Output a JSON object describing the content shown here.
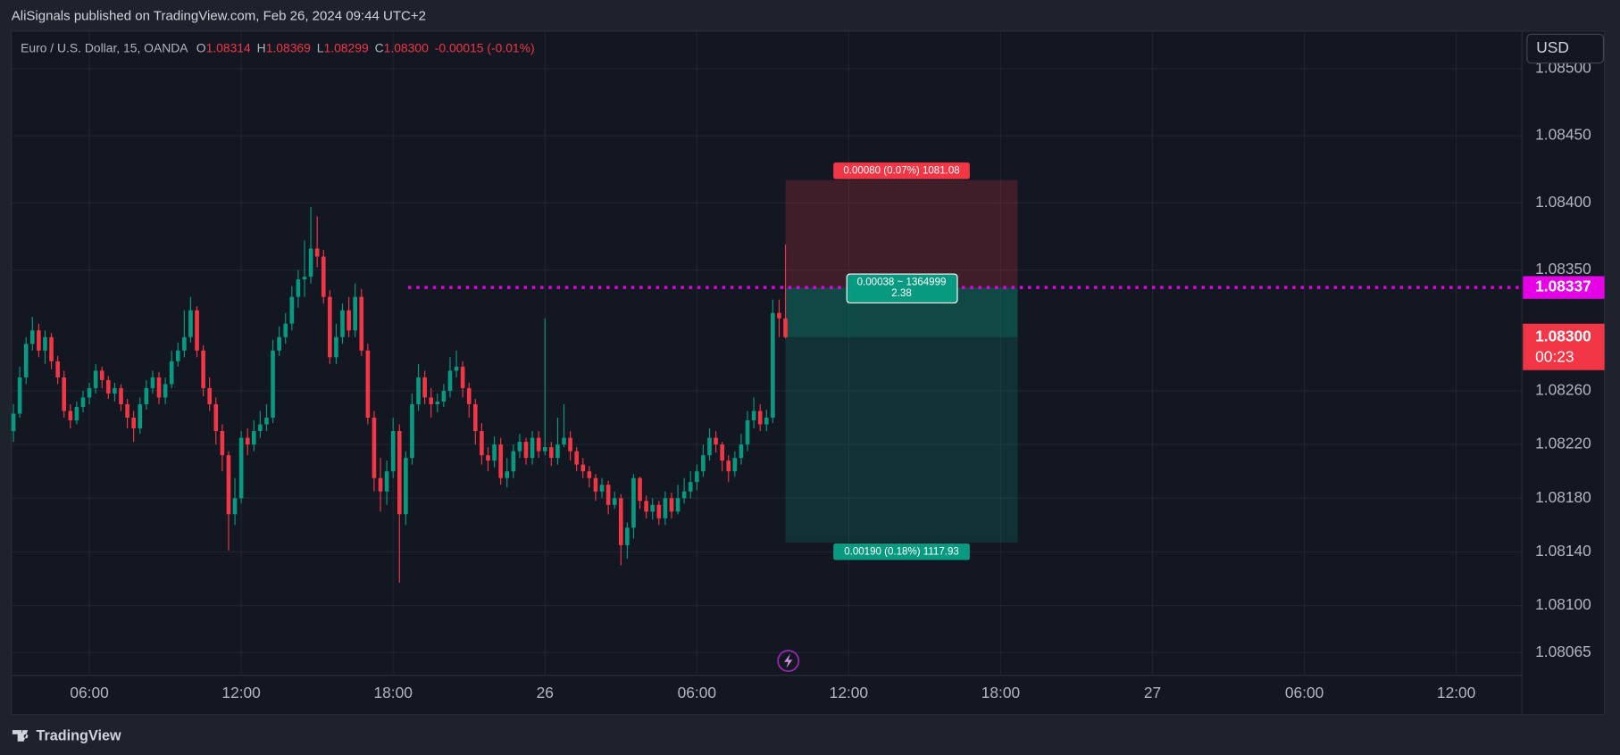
{
  "header": {
    "text": "AliSignals published on TradingView.com, Feb 26, 2024 09:44 UTC+2"
  },
  "legend": {
    "symbol": "Euro / U.S. Dollar, 15, OANDA",
    "o": "O",
    "open": "1.08314",
    "h": "H",
    "high": "1.08369",
    "l": "L",
    "low": "1.08299",
    "c": "C",
    "close": "1.08300",
    "change": "-0.00015 (-0.01%)"
  },
  "currency": "USD",
  "brand": "TradingView",
  "chart_data": {
    "type": "candlestick",
    "up_color": "#089981",
    "down_color": "#f23645",
    "ylim": [
      1.08048,
      1.08528
    ],
    "yticks": [
      {
        "value": 1.085,
        "label": "1.08500"
      },
      {
        "value": 1.0845,
        "label": "1.08450"
      },
      {
        "value": 1.084,
        "label": "1.08400"
      },
      {
        "value": 1.0835,
        "label": "1.08350"
      },
      {
        "value": 1.0826,
        "label": "1.08260"
      },
      {
        "value": 1.0822,
        "label": "1.08220"
      },
      {
        "value": 1.0818,
        "label": "1.08180"
      },
      {
        "value": 1.0814,
        "label": "1.08140"
      },
      {
        "value": 1.081,
        "label": "1.08100"
      },
      1.08065
    ],
    "xticks": [
      "06:00",
      "12:00",
      "18:00",
      "26",
      "06:00",
      "12:00",
      "18:00",
      "27",
      "06:00",
      "12:00"
    ],
    "grid": true,
    "alert": {
      "value": 1.08337,
      "color": "#e600e6"
    },
    "last_price": {
      "value": 1.083,
      "label": "1.08300",
      "countdown": "00:23"
    },
    "position": {
      "entry": 1.08337,
      "stop": 1.08417,
      "target": 1.08147,
      "stop_label": "0.00080 (0.07%) 1081.08",
      "entry_label": "0.00038 ~ 1364999",
      "ratio": "2.38",
      "target_label": "0.00190 (0.18%) 1117.93"
    },
    "ohlc": [
      [
        1.0823,
        1.0825,
        1.08222,
        1.08243
      ],
      [
        1.08243,
        1.08278,
        1.0824,
        1.0827
      ],
      [
        1.0827,
        1.083,
        1.08265,
        1.08295
      ],
      [
        1.08295,
        1.08315,
        1.0829,
        1.08305
      ],
      [
        1.08305,
        1.0831,
        1.08285,
        1.0829
      ],
      [
        1.0829,
        1.08305,
        1.0828,
        1.083
      ],
      [
        1.083,
        1.08303,
        1.08276,
        1.08282
      ],
      [
        1.08282,
        1.08286,
        1.08265,
        1.0827
      ],
      [
        1.0827,
        1.08275,
        1.0824,
        1.08245
      ],
      [
        1.08245,
        1.0825,
        1.08232,
        1.08238
      ],
      [
        1.08238,
        1.08252,
        1.08235,
        1.08248
      ],
      [
        1.08248,
        1.0826,
        1.08244,
        1.08255
      ],
      [
        1.08255,
        1.08266,
        1.0825,
        1.08262
      ],
      [
        1.08262,
        1.0828,
        1.08258,
        1.08275
      ],
      [
        1.08275,
        1.08278,
        1.08262,
        1.08268
      ],
      [
        1.08268,
        1.08271,
        1.08254,
        1.08258
      ],
      [
        1.08258,
        1.08266,
        1.08252,
        1.08262
      ],
      [
        1.08262,
        1.08265,
        1.08245,
        1.0825
      ],
      [
        1.0825,
        1.08254,
        1.08232,
        1.0824
      ],
      [
        1.0824,
        1.08245,
        1.08222,
        1.08232
      ],
      [
        1.08232,
        1.08255,
        1.08228,
        1.0825
      ],
      [
        1.0825,
        1.08268,
        1.08246,
        1.08262
      ],
      [
        1.08262,
        1.08275,
        1.08258,
        1.0827
      ],
      [
        1.0827,
        1.08274,
        1.0825,
        1.08255
      ],
      [
        1.08255,
        1.0827,
        1.0825,
        1.08265
      ],
      [
        1.08265,
        1.0829,
        1.08262,
        1.08282
      ],
      [
        1.08282,
        1.08296,
        1.08278,
        1.0829
      ],
      [
        1.0829,
        1.0832,
        1.08285,
        1.083
      ],
      [
        1.083,
        1.0833,
        1.08296,
        1.0832
      ],
      [
        1.0832,
        1.08323,
        1.08285,
        1.0829
      ],
      [
        1.0829,
        1.08294,
        1.08256,
        1.08262
      ],
      [
        1.08262,
        1.0827,
        1.08245,
        1.0825
      ],
      [
        1.0825,
        1.08255,
        1.0822,
        1.0823
      ],
      [
        1.0823,
        1.08235,
        1.082,
        1.08212
      ],
      [
        1.08212,
        1.08215,
        1.08141,
        1.08168
      ],
      [
        1.08168,
        1.08195,
        1.0816,
        1.0818
      ],
      [
        1.0818,
        1.0823,
        1.08176,
        1.08225
      ],
      [
        1.08225,
        1.08232,
        1.08212,
        1.0822
      ],
      [
        1.0822,
        1.08238,
        1.08215,
        1.0823
      ],
      [
        1.0823,
        1.08245,
        1.08225,
        1.08235
      ],
      [
        1.08235,
        1.0825,
        1.0823,
        1.0824
      ],
      [
        1.0824,
        1.08298,
        1.08236,
        1.0829
      ],
      [
        1.0829,
        1.08308,
        1.08286,
        1.083
      ],
      [
        1.083,
        1.08318,
        1.08295,
        1.0831
      ],
      [
        1.0831,
        1.08338,
        1.08305,
        1.0833
      ],
      [
        1.0833,
        1.0835,
        1.08322,
        1.08343
      ],
      [
        1.08343,
        1.08372,
        1.0833,
        1.08345
      ],
      [
        1.08345,
        1.08397,
        1.0834,
        1.08366
      ],
      [
        1.08366,
        1.0839,
        1.08352,
        1.0836
      ],
      [
        1.0836,
        1.08365,
        1.08325,
        1.0833
      ],
      [
        1.0833,
        1.08335,
        1.0828,
        1.08285
      ],
      [
        1.08285,
        1.0831,
        1.0828,
        1.083
      ],
      [
        1.083,
        1.08325,
        1.08295,
        1.0832
      ],
      [
        1.0832,
        1.0833,
        1.083,
        1.08305
      ],
      [
        1.08305,
        1.0834,
        1.083,
        1.0833
      ],
      [
        1.0833,
        1.08336,
        1.08286,
        1.0829
      ],
      [
        1.0829,
        1.08295,
        1.08235,
        1.0824
      ],
      [
        1.0824,
        1.08245,
        1.08185,
        1.08195
      ],
      [
        1.08195,
        1.0821,
        1.0817,
        1.08185
      ],
      [
        1.08185,
        1.08208,
        1.08175,
        1.082
      ],
      [
        1.082,
        1.0824,
        1.08195,
        1.0823
      ],
      [
        1.0823,
        1.08235,
        1.08117,
        1.08168
      ],
      [
        1.08168,
        1.08215,
        1.0816,
        1.0821
      ],
      [
        1.0821,
        1.08258,
        1.08205,
        1.0825
      ],
      [
        1.0825,
        1.0828,
        1.08245,
        1.0827
      ],
      [
        1.0827,
        1.08275,
        1.0825,
        1.08255
      ],
      [
        1.08255,
        1.08262,
        1.0824,
        1.0825
      ],
      [
        1.0825,
        1.08258,
        1.08244,
        1.08252
      ],
      [
        1.08252,
        1.08265,
        1.08248,
        1.0826
      ],
      [
        1.0826,
        1.08285,
        1.08255,
        1.08275
      ],
      [
        1.08275,
        1.0829,
        1.0827,
        1.08278
      ],
      [
        1.08278,
        1.08282,
        1.08255,
        1.08262
      ],
      [
        1.08262,
        1.08266,
        1.0824,
        1.0825
      ],
      [
        1.0825,
        1.08254,
        1.0822,
        1.0823
      ],
      [
        1.0823,
        1.08236,
        1.08205,
        1.08212
      ],
      [
        1.08212,
        1.08218,
        1.082,
        1.08208
      ],
      [
        1.08208,
        1.08226,
        1.08203,
        1.0822
      ],
      [
        1.0822,
        1.08225,
        1.0819,
        1.08195
      ],
      [
        1.08195,
        1.0821,
        1.08188,
        1.082
      ],
      [
        1.082,
        1.0822,
        1.08195,
        1.08215
      ],
      [
        1.08215,
        1.08228,
        1.0821,
        1.08222
      ],
      [
        1.08222,
        1.08225,
        1.08205,
        1.0821
      ],
      [
        1.0821,
        1.0823,
        1.08205,
        1.08225
      ],
      [
        1.08225,
        1.0823,
        1.0821,
        1.08215
      ],
      [
        1.08215,
        1.08314,
        1.08212,
        1.08218
      ],
      [
        1.08218,
        1.08222,
        1.08204,
        1.0821
      ],
      [
        1.0821,
        1.0824,
        1.08205,
        1.0822
      ],
      [
        1.0822,
        1.0825,
        1.08218,
        1.08225
      ],
      [
        1.08225,
        1.0823,
        1.08208,
        1.08215
      ],
      [
        1.08215,
        1.08218,
        1.082,
        1.08205
      ],
      [
        1.08205,
        1.0821,
        1.08195,
        1.082
      ],
      [
        1.082,
        1.08204,
        1.08188,
        1.08195
      ],
      [
        1.08195,
        1.08198,
        1.08178,
        1.08185
      ],
      [
        1.08185,
        1.08195,
        1.0818,
        1.0819
      ],
      [
        1.0819,
        1.08193,
        1.08168,
        1.08175
      ],
      [
        1.08175,
        1.08185,
        1.08172,
        1.0818
      ],
      [
        1.0818,
        1.08183,
        1.0813,
        1.08145
      ],
      [
        1.08145,
        1.08162,
        1.08135,
        1.08158
      ],
      [
        1.08158,
        1.08198,
        1.0815,
        1.08195
      ],
      [
        1.08195,
        1.08196,
        1.08172,
        1.08178
      ],
      [
        1.08178,
        1.08182,
        1.08165,
        1.0817
      ],
      [
        1.0817,
        1.0818,
        1.08164,
        1.08175
      ],
      [
        1.08175,
        1.08178,
        1.0816,
        1.08165
      ],
      [
        1.08165,
        1.08185,
        1.0816,
        1.0818
      ],
      [
        1.0818,
        1.08184,
        1.08165,
        1.0817
      ],
      [
        1.0817,
        1.0819,
        1.08168,
        1.0818
      ],
      [
        1.0818,
        1.08195,
        1.08176,
        1.08185
      ],
      [
        1.08185,
        1.082,
        1.0818,
        1.08192
      ],
      [
        1.08192,
        1.08205,
        1.08186,
        1.082
      ],
      [
        1.082,
        1.0822,
        1.08196,
        1.08212
      ],
      [
        1.08212,
        1.08232,
        1.08208,
        1.08225
      ],
      [
        1.08225,
        1.0823,
        1.08214,
        1.0822
      ],
      [
        1.0822,
        1.08222,
        1.082,
        1.08208
      ],
      [
        1.08208,
        1.08212,
        1.08192,
        1.082
      ],
      [
        1.082,
        1.08215,
        1.08196,
        1.0821
      ],
      [
        1.0821,
        1.08228,
        1.08205,
        1.0822
      ],
      [
        1.0822,
        1.08245,
        1.08215,
        1.08238
      ],
      [
        1.08238,
        1.08255,
        1.08232,
        1.08245
      ],
      [
        1.08245,
        1.0825,
        1.0823,
        1.08235
      ],
      [
        1.08235,
        1.08246,
        1.0823,
        1.0824
      ],
      [
        1.0824,
        1.08328,
        1.08236,
        1.08318
      ],
      [
        1.08318,
        1.08328,
        1.083,
        1.08314
      ],
      [
        1.08314,
        1.08369,
        1.08299,
        1.083
      ]
    ]
  }
}
